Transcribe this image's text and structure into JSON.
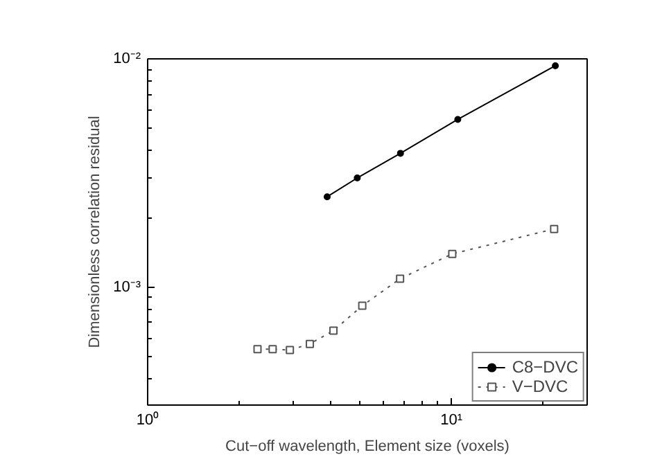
{
  "chart_data": {
    "type": "line",
    "xlabel": "Cut−off wavelength, Element size (voxels)",
    "ylabel": "Dimensionless correlation residual",
    "log": "xy",
    "xlim": [
      1,
      28
    ],
    "ylim": [
      0.000305,
      0.01
    ],
    "xticks": [
      {
        "value": 1,
        "label": "10⁰"
      },
      {
        "value": 10,
        "label": "10¹"
      }
    ],
    "yticks": [
      {
        "value": 0.001,
        "label": "10⁻³"
      },
      {
        "value": 0.01,
        "label": "10⁻²"
      }
    ],
    "grid": false,
    "legend": "bottom right",
    "series": [
      {
        "name": "C8−DVC",
        "color": "#000000",
        "marker": "circle",
        "line_style": "solid",
        "x": [
          3.9,
          4.9,
          6.8,
          10.5,
          22
        ],
        "values": [
          0.00249,
          0.00301,
          0.00386,
          0.00543,
          0.00933
        ]
      },
      {
        "name": "V−DVC",
        "color": "#555555",
        "marker": "square",
        "line_style": "dotted",
        "x": [
          2.3,
          2.58,
          2.94,
          3.42,
          4.09,
          5.09,
          6.78,
          10.07,
          21.8
        ],
        "values": [
          0.000536,
          0.000536,
          0.000531,
          0.000565,
          0.000646,
          0.00083,
          0.00109,
          0.0014,
          0.0018
        ]
      }
    ]
  }
}
